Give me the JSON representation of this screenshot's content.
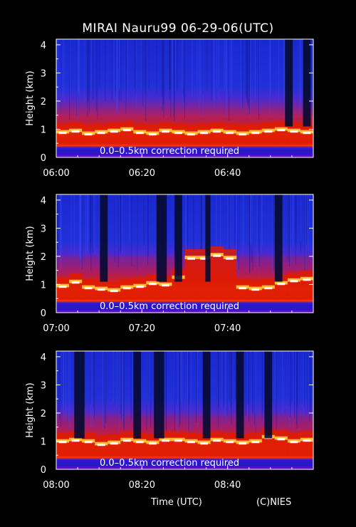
{
  "title": "MIRAI Nauru99 06-29-06(UTC)",
  "footer": {
    "xlabel": "Time (UTC)",
    "credit": "(C)NIES"
  },
  "colors": {
    "background": "#000000",
    "sky": "#1b2bd6",
    "cloud_white": "#ffffff",
    "aerosol_red": "#e01a00"
  },
  "chart_data": [
    {
      "type": "heatmap",
      "title": "",
      "ylabel": "Height (km)",
      "ylim": [
        0,
        4.2
      ],
      "yticks": [
        0,
        1,
        2,
        3,
        4
      ],
      "xlim_minutes": [
        "06:00",
        "07:00"
      ],
      "xticks": [
        "06:00",
        "06:20",
        "06:40"
      ],
      "annotation": "0.0–0.5km correction required",
      "cloud_base_km": [
        0.85,
        0.9,
        0.8,
        0.85,
        0.9,
        0.95,
        0.85,
        0.8,
        0.9,
        0.85,
        0.8,
        0.85,
        0.9,
        0.85,
        0.8,
        0.85,
        0.9,
        0.95,
        0.9,
        0.85
      ],
      "boundary_layer_top_km": 1.4,
      "dark_gaps": [
        [
          0.89,
          0.92
        ],
        [
          0.96,
          0.99
        ]
      ]
    },
    {
      "type": "heatmap",
      "title": "",
      "ylabel": "Height (km)",
      "ylim": [
        0,
        4.2
      ],
      "yticks": [
        0,
        1,
        2,
        3,
        4
      ],
      "xlim_minutes": [
        "07:00",
        "08:00"
      ],
      "xticks": [
        "07:00",
        "07:20",
        "07:40"
      ],
      "annotation": "0.0–0.5km correction required",
      "cloud_base_km": [
        0.9,
        1.05,
        0.85,
        0.8,
        0.75,
        0.85,
        0.9,
        1.0,
        0.95,
        1.2,
        1.9,
        1.9,
        2.0,
        1.9,
        0.85,
        0.8,
        0.85,
        1.0,
        1.1,
        1.15
      ],
      "boundary_layer_top_km": 2.0,
      "dark_gaps": [
        [
          0.17,
          0.2
        ],
        [
          0.39,
          0.43
        ],
        [
          0.46,
          0.49
        ],
        [
          0.58,
          0.6
        ],
        [
          0.85,
          0.88
        ]
      ]
    },
    {
      "type": "heatmap",
      "title": "",
      "ylabel": "Height (km)",
      "ylim": [
        0,
        4.2
      ],
      "yticks": [
        0,
        1,
        2,
        3,
        4
      ],
      "xlim_minutes": [
        "08:00",
        "09:00"
      ],
      "xticks": [
        "08:00",
        "08:20",
        "08:40"
      ],
      "annotation": "0.0–0.5km correction required",
      "cloud_base_km": [
        0.95,
        1.0,
        0.95,
        0.85,
        0.9,
        1.0,
        0.95,
        0.9,
        1.0,
        1.0,
        0.95,
        0.9,
        1.0,
        0.95,
        0.9,
        0.95,
        1.1,
        1.05,
        0.95,
        1.0
      ],
      "boundary_layer_top_km": 1.9,
      "dark_gaps": [
        [
          0.07,
          0.11
        ],
        [
          0.3,
          0.33
        ],
        [
          0.38,
          0.42
        ],
        [
          0.57,
          0.6
        ],
        [
          0.7,
          0.73
        ],
        [
          0.81,
          0.84
        ]
      ]
    }
  ]
}
